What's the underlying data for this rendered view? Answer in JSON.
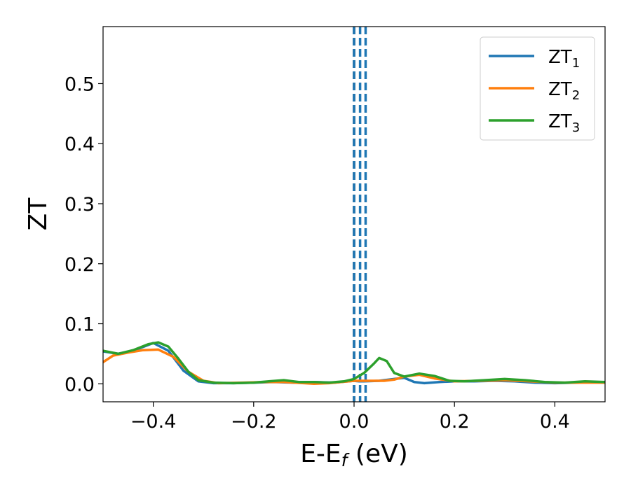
{
  "chart_data": {
    "type": "line",
    "xlabel": "E-E",
    "xlabel_sub": "f",
    "xlabel_unit": " (eV)",
    "ylabel": "ZT",
    "xlim": [
      -0.5,
      0.5
    ],
    "ylim": [
      -0.03,
      0.595
    ],
    "xticks": [
      -0.4,
      -0.2,
      0.0,
      0.2,
      0.4
    ],
    "xtick_labels": [
      "−0.4",
      "−0.2",
      "0.0",
      "0.2",
      "0.4"
    ],
    "yticks": [
      0.0,
      0.1,
      0.2,
      0.3,
      0.4,
      0.5
    ],
    "ytick_labels": [
      "0.0",
      "0.1",
      "0.2",
      "0.3",
      "0.4",
      "0.5"
    ],
    "grid": false,
    "legend_position": "top-right",
    "vlines": [
      {
        "x": 0.0,
        "color": "#000000",
        "style": "dashed"
      },
      {
        "x": 0.0,
        "color": "#1f77b4",
        "style": "dashed"
      },
      {
        "x": 0.012,
        "color": "#1f77b4",
        "style": "dashed"
      },
      {
        "x": 0.023,
        "color": "#1f77b4",
        "style": "dashed"
      }
    ],
    "series": [
      {
        "name": "ZT",
        "name_sub": "1",
        "color": "#1f77b4",
        "points": [
          [
            -0.5,
            0.054
          ],
          [
            -0.47,
            0.05
          ],
          [
            -0.44,
            0.055
          ],
          [
            -0.4,
            0.068
          ],
          [
            -0.37,
            0.055
          ],
          [
            -0.34,
            0.022
          ],
          [
            -0.31,
            0.004
          ],
          [
            -0.28,
            0.001
          ],
          [
            -0.24,
            0.001
          ],
          [
            -0.2,
            0.002
          ],
          [
            -0.16,
            0.003
          ],
          [
            -0.12,
            0.002
          ],
          [
            -0.08,
            0.003
          ],
          [
            -0.04,
            0.002
          ],
          [
            0.0,
            0.005
          ],
          [
            0.01,
            0.004
          ],
          [
            0.02,
            0.004
          ],
          [
            0.05,
            0.005
          ],
          [
            0.08,
            0.008
          ],
          [
            0.1,
            0.01
          ],
          [
            0.12,
            0.003
          ],
          [
            0.14,
            0.001
          ],
          [
            0.17,
            0.003
          ],
          [
            0.2,
            0.004
          ],
          [
            0.24,
            0.004
          ],
          [
            0.28,
            0.005
          ],
          [
            0.32,
            0.004
          ],
          [
            0.36,
            0.002
          ],
          [
            0.4,
            0.001
          ],
          [
            0.44,
            0.002
          ],
          [
            0.47,
            0.003
          ],
          [
            0.5,
            0.002
          ]
        ]
      },
      {
        "name": "ZT",
        "name_sub": "2",
        "color": "#ff7f0e",
        "points": [
          [
            -0.5,
            0.036
          ],
          [
            -0.48,
            0.047
          ],
          [
            -0.45,
            0.052
          ],
          [
            -0.42,
            0.056
          ],
          [
            -0.39,
            0.057
          ],
          [
            -0.36,
            0.045
          ],
          [
            -0.33,
            0.02
          ],
          [
            -0.3,
            0.005
          ],
          [
            -0.27,
            0.001
          ],
          [
            -0.22,
            0.002
          ],
          [
            -0.18,
            0.003
          ],
          [
            -0.14,
            0.003
          ],
          [
            -0.1,
            0.001
          ],
          [
            -0.08,
            0.0
          ],
          [
            -0.05,
            0.001
          ],
          [
            0.0,
            0.005
          ],
          [
            0.03,
            0.005
          ],
          [
            0.06,
            0.005
          ],
          [
            0.08,
            0.007
          ],
          [
            0.1,
            0.012
          ],
          [
            0.13,
            0.015
          ],
          [
            0.16,
            0.009
          ],
          [
            0.2,
            0.004
          ],
          [
            0.25,
            0.005
          ],
          [
            0.3,
            0.006
          ],
          [
            0.35,
            0.004
          ],
          [
            0.4,
            0.002
          ],
          [
            0.45,
            0.002
          ],
          [
            0.5,
            0.002
          ]
        ]
      },
      {
        "name": "ZT",
        "name_sub": "3",
        "color": "#2ca02c",
        "points": [
          [
            -0.5,
            0.055
          ],
          [
            -0.47,
            0.05
          ],
          [
            -0.44,
            0.056
          ],
          [
            -0.41,
            0.066
          ],
          [
            -0.39,
            0.069
          ],
          [
            -0.37,
            0.062
          ],
          [
            -0.35,
            0.042
          ],
          [
            -0.33,
            0.02
          ],
          [
            -0.31,
            0.006
          ],
          [
            -0.28,
            0.002
          ],
          [
            -0.24,
            0.001
          ],
          [
            -0.2,
            0.002
          ],
          [
            -0.17,
            0.004
          ],
          [
            -0.14,
            0.006
          ],
          [
            -0.11,
            0.003
          ],
          [
            -0.08,
            0.003
          ],
          [
            -0.05,
            0.002
          ],
          [
            -0.02,
            0.004
          ],
          [
            0.0,
            0.008
          ],
          [
            0.02,
            0.018
          ],
          [
            0.04,
            0.034
          ],
          [
            0.05,
            0.043
          ],
          [
            0.065,
            0.038
          ],
          [
            0.08,
            0.018
          ],
          [
            0.1,
            0.012
          ],
          [
            0.13,
            0.017
          ],
          [
            0.16,
            0.013
          ],
          [
            0.19,
            0.005
          ],
          [
            0.22,
            0.004
          ],
          [
            0.26,
            0.006
          ],
          [
            0.3,
            0.008
          ],
          [
            0.34,
            0.006
          ],
          [
            0.38,
            0.003
          ],
          [
            0.42,
            0.002
          ],
          [
            0.46,
            0.004
          ],
          [
            0.5,
            0.003
          ]
        ]
      }
    ]
  }
}
